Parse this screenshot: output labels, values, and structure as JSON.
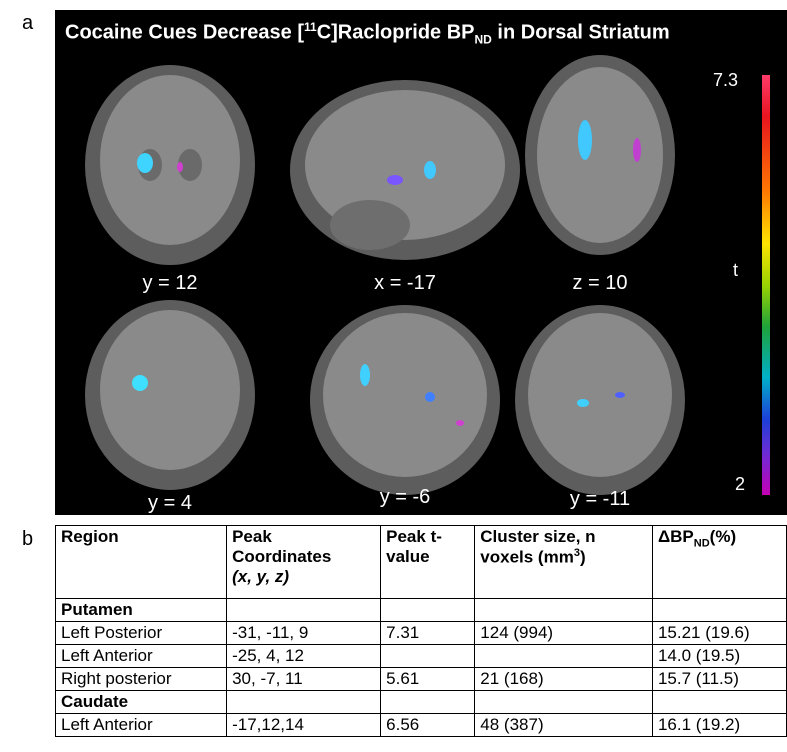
{
  "panel_a": {
    "label": "a",
    "title": {
      "pre": "Cocaine Cues Decrease [",
      "sup": "11",
      "mid": "C]Raclopride BP",
      "sub": "ND",
      "post": " in Dorsal Striatum"
    },
    "slices": [
      "y = 12",
      "x = -17",
      "z = 10",
      "y = 4",
      "y = -6",
      "y = -11"
    ],
    "colorbar": {
      "max_label": "7.3",
      "axis_label": "t",
      "min_label": "2"
    }
  },
  "panel_b": {
    "label": "b",
    "header": {
      "region": "Region",
      "coords": "Peak Coordinates",
      "coords_vars": "(x, y, z)",
      "t_value": "Peak t-value",
      "cluster": "Cluster size, n voxels (mm",
      "cluster_sup": "3",
      "cluster_end": ")",
      "delta": "ΔBP",
      "delta_sub": "ND",
      "delta_end": "(%)"
    },
    "rows": [
      {
        "group": "Putamen"
      },
      {
        "cells": [
          "Left Posterior",
          "-31, -11, 9",
          "7.31",
          "124 (994)",
          "15.21 (19.6)"
        ]
      },
      {
        "cells": [
          "Left Anterior",
          "-25, 4, 12",
          null,
          null,
          "14.0 (19.5)"
        ]
      },
      {
        "cells": [
          "Right posterior",
          "30, -7, 11",
          "5.61",
          "21 (168)",
          "15.7 (11.5)"
        ]
      },
      {
        "group": "Caudate"
      },
      {
        "cells": [
          "Left Anterior",
          "-17,12,14",
          "6.56",
          "48 (387)",
          "16.1 (19.2)"
        ]
      }
    ]
  }
}
